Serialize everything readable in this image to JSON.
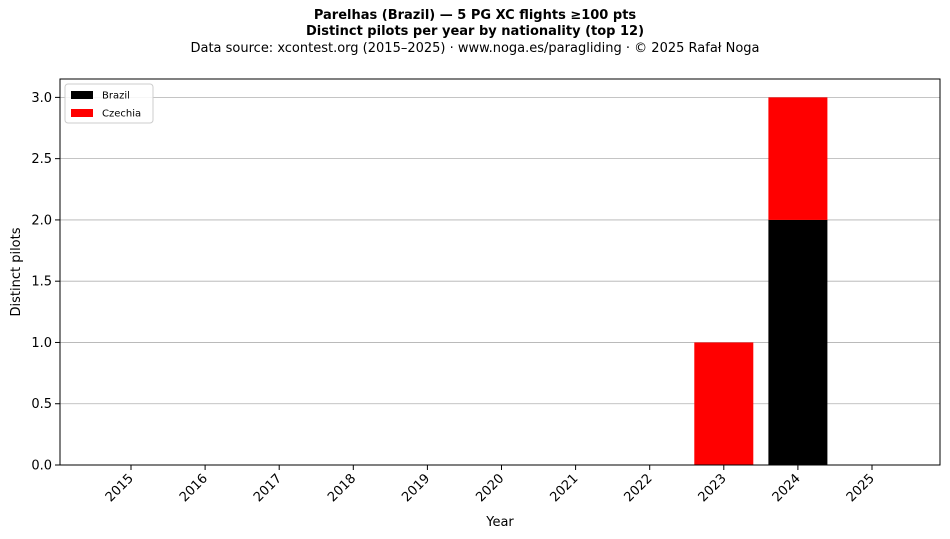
{
  "header": {
    "title_line1": "Parelhas (Brazil)  —  5 PG XC flights ≥100 pts",
    "title_line2": "Distinct pilots per year by nationality (top 12)",
    "subtitle": "Data source: xcontest.org (2015–2025)  ·  www.noga.es/paragliding  ·  © 2025 Rafał Noga"
  },
  "chart_data": {
    "type": "bar",
    "stacked": true,
    "title": "Parelhas (Brazil)  —  5 PG XC flights ≥100 pts",
    "xlabel": "Year",
    "ylabel": "Distinct pilots",
    "categories": [
      "2015",
      "2016",
      "2017",
      "2018",
      "2019",
      "2020",
      "2021",
      "2022",
      "2023",
      "2024",
      "2025"
    ],
    "series": [
      {
        "name": "Brazil",
        "color": "#000000",
        "values": [
          0,
          0,
          0,
          0,
          0,
          0,
          0,
          0,
          0,
          2,
          0
        ]
      },
      {
        "name": "Czechia",
        "color": "#ff0000",
        "values": [
          0,
          0,
          0,
          0,
          0,
          0,
          0,
          0,
          1,
          1,
          0
        ]
      }
    ],
    "ylim": [
      0,
      3.15
    ],
    "yticks": [
      0.0,
      0.5,
      1.0,
      1.5,
      2.0,
      2.5,
      3.0
    ],
    "ytick_labels": [
      "0.0",
      "0.5",
      "1.0",
      "1.5",
      "2.0",
      "2.5",
      "3.0"
    ],
    "grid": "y",
    "legend_position": "top-left"
  }
}
